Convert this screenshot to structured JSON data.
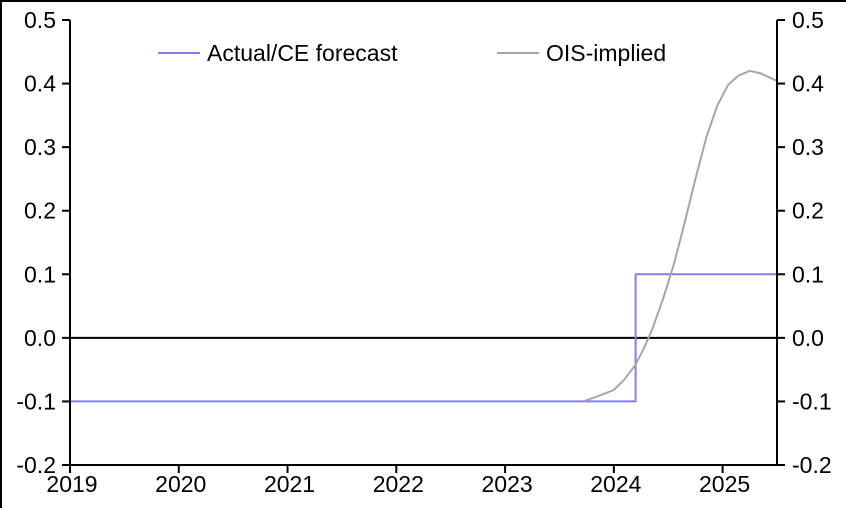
{
  "chart": {
    "legend": [
      {
        "label": "Actual/CE forecast",
        "color": "#8080EC"
      },
      {
        "label": "OIS-implied",
        "color": "#A6A6A6"
      }
    ]
  },
  "chart_data": {
    "type": "line",
    "title": "",
    "xlabel": "",
    "ylabel": "",
    "x_range": [
      2019,
      2025.5
    ],
    "y_range": [
      -0.2,
      0.5
    ],
    "x_tick_values": [
      2019,
      2020,
      2021,
      2022,
      2023,
      2024,
      2025
    ],
    "x_tick_labels": [
      "2019",
      "2020",
      "2021",
      "2022",
      "2023",
      "2024",
      "2025"
    ],
    "y_tick_values": [
      0.5,
      0.4,
      0.3,
      0.2,
      0.1,
      0.0,
      -0.1,
      -0.2
    ],
    "y_tick_labels": [
      "0.5",
      "0.4",
      "0.3",
      "0.2",
      "0.1",
      "0.0",
      "-0.1",
      "-0.2"
    ],
    "dual_y_axis": true,
    "grid": false,
    "zero_line": true,
    "legend_position": "top-inside",
    "axis_color": "#000000",
    "series": [
      {
        "name": "Actual/CE forecast",
        "color": "#8080EC",
        "points": [
          [
            2019.0,
            -0.1
          ],
          [
            2024.2,
            -0.1
          ],
          [
            2024.2,
            0.1
          ],
          [
            2025.5,
            0.1
          ]
        ]
      },
      {
        "name": "OIS-implied",
        "color": "#A6A6A6",
        "points": [
          [
            2023.72,
            -0.1
          ],
          [
            2023.85,
            -0.092
          ],
          [
            2024.0,
            -0.082
          ],
          [
            2024.1,
            -0.065
          ],
          [
            2024.2,
            -0.042
          ],
          [
            2024.28,
            -0.015
          ],
          [
            2024.35,
            0.012
          ],
          [
            2024.45,
            0.06
          ],
          [
            2024.55,
            0.115
          ],
          [
            2024.65,
            0.18
          ],
          [
            2024.75,
            0.25
          ],
          [
            2024.85,
            0.315
          ],
          [
            2024.95,
            0.365
          ],
          [
            2025.05,
            0.398
          ],
          [
            2025.15,
            0.413
          ],
          [
            2025.25,
            0.42
          ],
          [
            2025.35,
            0.416
          ],
          [
            2025.5,
            0.404
          ]
        ]
      }
    ]
  }
}
